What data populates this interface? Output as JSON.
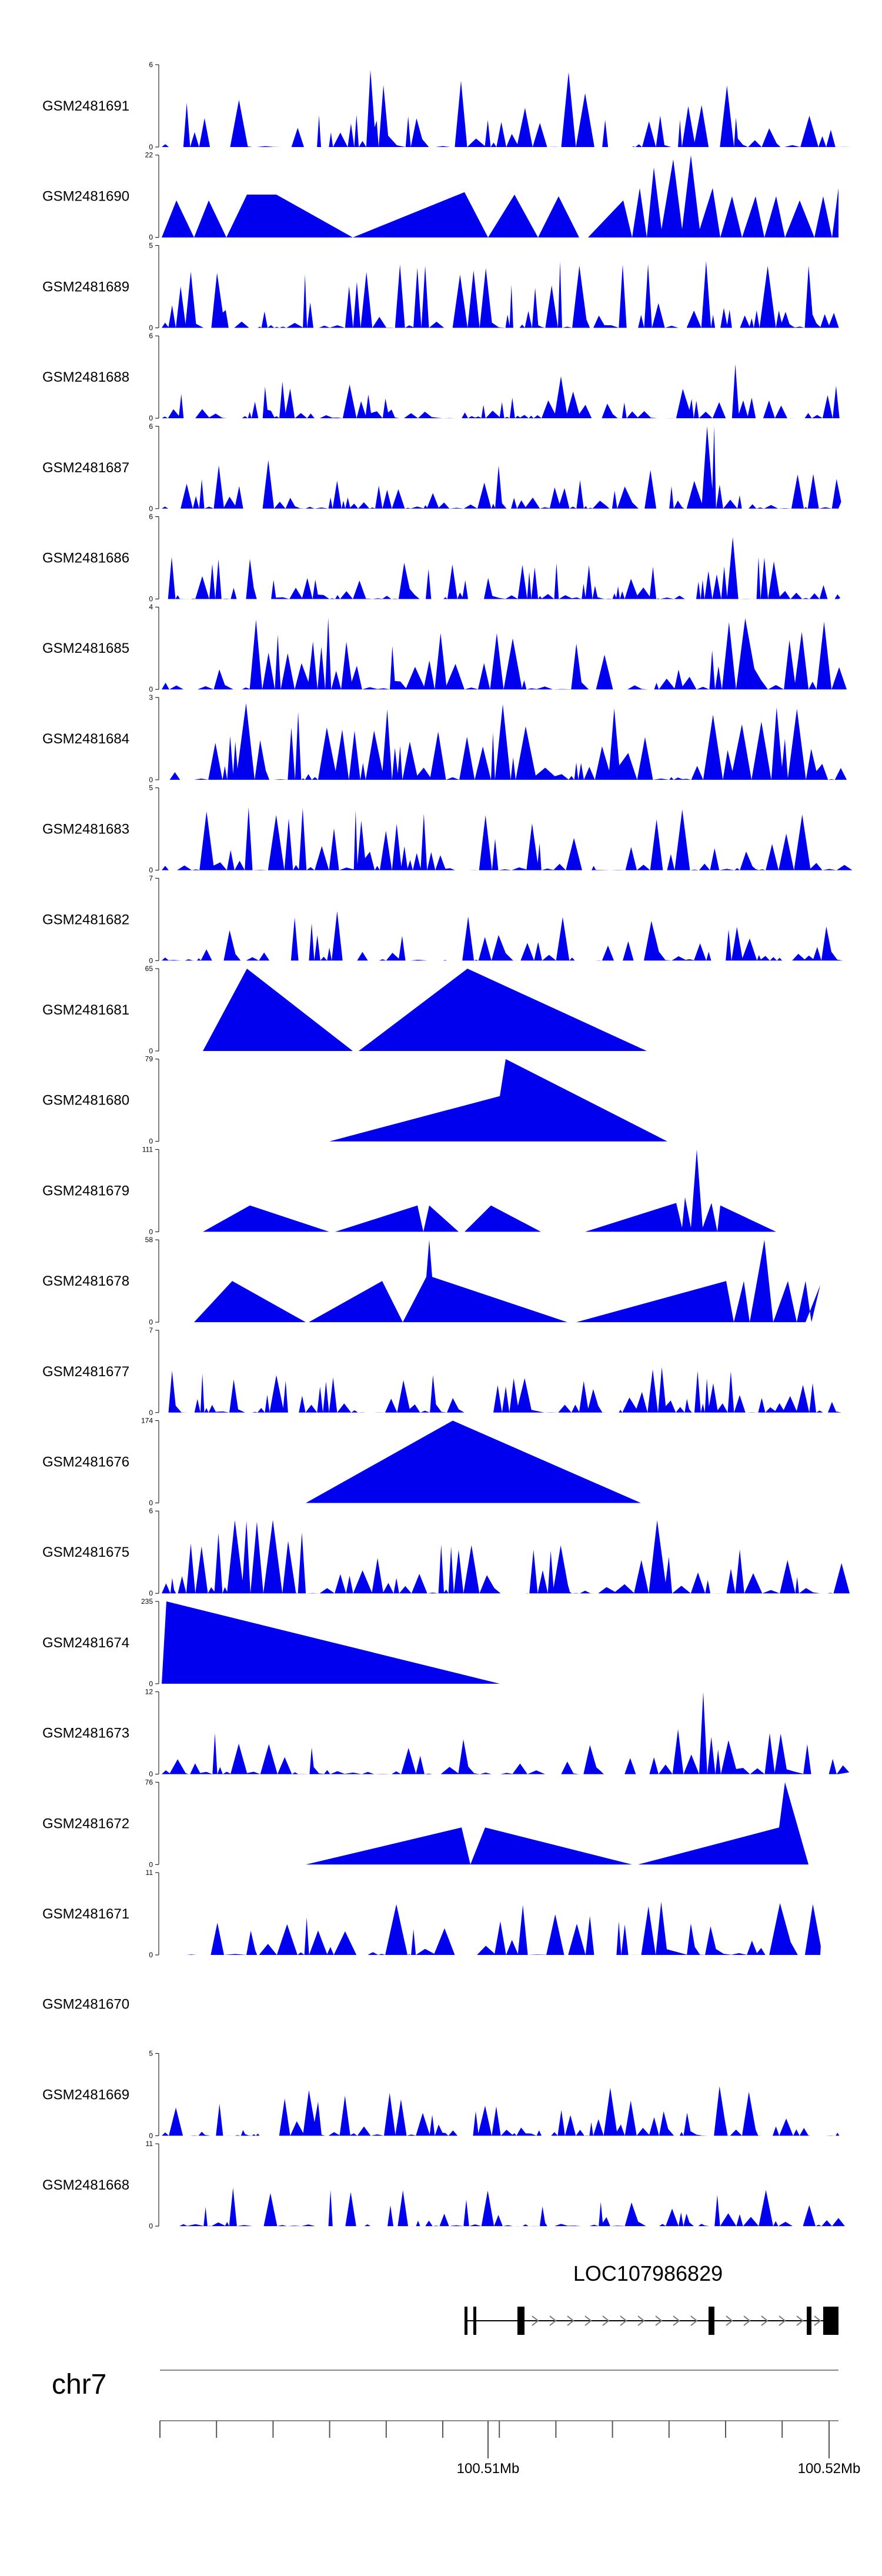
{
  "chart_data": {
    "type": "area",
    "colors": {
      "fill": "#0000ee",
      "axis": "#000000",
      "chrom_line": "#888888",
      "scale_tick": "#555555"
    },
    "tracks": [
      {
        "name": "GSM2481691",
        "ymax": 6,
        "ymin": 0
      },
      {
        "name": "GSM2481690",
        "ymax": 22,
        "ymin": 0
      },
      {
        "name": "GSM2481689",
        "ymax": 5,
        "ymin": 0
      },
      {
        "name": "GSM2481688",
        "ymax": 6,
        "ymin": 0
      },
      {
        "name": "GSM2481687",
        "ymax": 6,
        "ymin": 0
      },
      {
        "name": "GSM2481686",
        "ymax": 6,
        "ymin": 0
      },
      {
        "name": "GSM2481685",
        "ymax": 4,
        "ymin": 0
      },
      {
        "name": "GSM2481684",
        "ymax": 3,
        "ymin": 0
      },
      {
        "name": "GSM2481683",
        "ymax": 5,
        "ymin": 0
      },
      {
        "name": "GSM2481682",
        "ymax": 7,
        "ymin": 0
      },
      {
        "name": "GSM2481681",
        "ymax": 65,
        "ymin": 0
      },
      {
        "name": "GSM2481680",
        "ymax": 79,
        "ymin": 0
      },
      {
        "name": "GSM2481679",
        "ymax": 111,
        "ymin": 0
      },
      {
        "name": "GSM2481678",
        "ymax": 58,
        "ymin": 0
      },
      {
        "name": "GSM2481677",
        "ymax": 7,
        "ymin": 0
      },
      {
        "name": "GSM2481676",
        "ymax": 174,
        "ymin": 0
      },
      {
        "name": "GSM2481675",
        "ymax": 6,
        "ymin": 0
      },
      {
        "name": "GSM2481674",
        "ymax": 235,
        "ymin": 0
      },
      {
        "name": "GSM2481673",
        "ymax": 12,
        "ymin": 0
      },
      {
        "name": "GSM2481672",
        "ymax": 76,
        "ymin": 0
      },
      {
        "name": "GSM2481671",
        "ymax": 11,
        "ymin": 0
      },
      {
        "name": "GSM2481670",
        "ymax": null,
        "ymin": null
      },
      {
        "name": "GSM2481669",
        "ymax": 5,
        "ymin": 0
      },
      {
        "name": "GSM2481668",
        "ymax": 11,
        "ymin": 0
      }
    ],
    "gene": {
      "name": "LOC107986829"
    },
    "chromosome": "chr7",
    "scale_labels": [
      "100.51Mb",
      "100.52Mb"
    ]
  }
}
